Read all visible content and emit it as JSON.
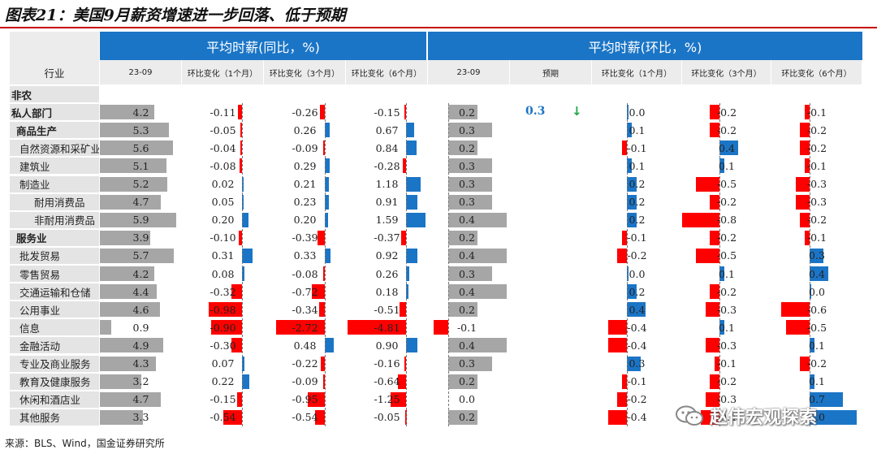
{
  "title": "图表21：美国9月薪资增速进一步回落、低于预期",
  "source": "来源：BLS、Wind，国金证券研究所",
  "watermark": "赵伟宏观探索",
  "headers": {
    "group_yoy": "平均时薪(同比，%)",
    "group_mom": "平均时薪(环比，%)",
    "industry": "行业",
    "yoy_cols": [
      "23-09",
      "环比变化（1个月）",
      "环比变化（3个月）",
      "环比变化（6个月）"
    ],
    "mom_cols": [
      "23-09",
      "预期",
      "环比变化（1个月）",
      "环比变化（3个月）",
      "环比变化（6个月）"
    ]
  },
  "forecast": {
    "value": "0.3",
    "arrow": "↓"
  },
  "colors": {
    "header_blue": "#1b75c6",
    "bar_grey": "#a6a6a6",
    "neg_red": "#ff0000",
    "pos_blue": "#1b75c6"
  },
  "chart_data": {
    "type": "table",
    "rows": [
      {
        "label": "非农",
        "level": 0,
        "bold": true,
        "section": true,
        "yoy": null,
        "yoy_d1": null,
        "yoy_d3": null,
        "yoy_d6": null,
        "mom": null,
        "mom_d1": null,
        "mom_d3": null,
        "mom_d6": null
      },
      {
        "label": "私人部门",
        "level": 0,
        "bold": true,
        "yoy": "4.2",
        "yoy_d1": "-0.11",
        "yoy_d3": "-0.26",
        "yoy_d6": "-0.15",
        "mom": "0.2",
        "mom_d1": "0.0",
        "mom_d3": "-0.2",
        "mom_d6": "-0.1"
      },
      {
        "label": "商品生产",
        "level": 1,
        "bold": true,
        "yoy": "5.3",
        "yoy_d1": "-0.05",
        "yoy_d3": "0.26",
        "yoy_d6": "0.67",
        "mom": "0.3",
        "mom_d1": "0.1",
        "mom_d3": "-0.2",
        "mom_d6": "-0.2"
      },
      {
        "label": "自然资源和采矿业",
        "level": 2,
        "bold": false,
        "yoy": "5.6",
        "yoy_d1": "-0.04",
        "yoy_d3": "-0.09",
        "yoy_d6": "0.84",
        "mom": "0.2",
        "mom_d1": "-0.1",
        "mom_d3": "0.4",
        "mom_d6": "-0.2"
      },
      {
        "label": "建筑业",
        "level": 2,
        "bold": false,
        "yoy": "5.1",
        "yoy_d1": "-0.08",
        "yoy_d3": "0.29",
        "yoy_d6": "-0.28",
        "mom": "0.3",
        "mom_d1": "0.1",
        "mom_d3": "0.1",
        "mom_d6": "-0.1"
      },
      {
        "label": "制造业",
        "level": 2,
        "bold": false,
        "yoy": "5.2",
        "yoy_d1": "0.02",
        "yoy_d3": "0.21",
        "yoy_d6": "1.18",
        "mom": "0.3",
        "mom_d1": "0.2",
        "mom_d3": "-0.5",
        "mom_d6": "-0.3"
      },
      {
        "label": "耐用消费品",
        "level": 3,
        "bold": false,
        "yoy": "4.7",
        "yoy_d1": "0.05",
        "yoy_d3": "0.23",
        "yoy_d6": "0.91",
        "mom": "0.3",
        "mom_d1": "0.2",
        "mom_d3": "-0.2",
        "mom_d6": "-0.3"
      },
      {
        "label": "非耐用消费品",
        "level": 3,
        "bold": false,
        "yoy": "5.9",
        "yoy_d1": "0.20",
        "yoy_d3": "0.20",
        "yoy_d6": "1.59",
        "mom": "0.4",
        "mom_d1": "0.2",
        "mom_d3": "-0.8",
        "mom_d6": "-0.2"
      },
      {
        "label": "服务业",
        "level": 1,
        "bold": true,
        "yoy": "3.9",
        "yoy_d1": "-0.10",
        "yoy_d3": "-0.39",
        "yoy_d6": "-0.37",
        "mom": "0.2",
        "mom_d1": "-0.1",
        "mom_d3": "-0.2",
        "mom_d6": "-0.1"
      },
      {
        "label": "批发贸易",
        "level": 2,
        "bold": false,
        "yoy": "5.7",
        "yoy_d1": "0.31",
        "yoy_d3": "0.33",
        "yoy_d6": "0.92",
        "mom": "0.4",
        "mom_d1": "-0.2",
        "mom_d3": "-0.5",
        "mom_d6": "0.3"
      },
      {
        "label": "零售贸易",
        "level": 2,
        "bold": false,
        "yoy": "4.2",
        "yoy_d1": "0.08",
        "yoy_d3": "-0.08",
        "yoy_d6": "0.26",
        "mom": "0.3",
        "mom_d1": "0.0",
        "mom_d3": "0.1",
        "mom_d6": "0.4"
      },
      {
        "label": "交通运输和仓储",
        "level": 2,
        "bold": false,
        "yoy": "4.4",
        "yoy_d1": "-0.32",
        "yoy_d3": "-0.72",
        "yoy_d6": "0.18",
        "mom": "0.4",
        "mom_d1": "0.2",
        "mom_d3": "-0.2",
        "mom_d6": "0.0"
      },
      {
        "label": "公用事业",
        "level": 2,
        "bold": false,
        "yoy": "4.6",
        "yoy_d1": "-0.98",
        "yoy_d3": "-0.34",
        "yoy_d6": "-0.51",
        "mom": "0.2",
        "mom_d1": "0.4",
        "mom_d3": "-0.3",
        "mom_d6": "-0.6"
      },
      {
        "label": "信息",
        "level": 2,
        "bold": false,
        "yoy": "0.9",
        "yoy_d1": "-0.90",
        "yoy_d3": "-2.72",
        "yoy_d6": "-4.81",
        "mom": "-0.1",
        "mom_d1": "-0.4",
        "mom_d3": "0.1",
        "mom_d6": "-0.5"
      },
      {
        "label": "金融活动",
        "level": 2,
        "bold": false,
        "yoy": "4.9",
        "yoy_d1": "-0.30",
        "yoy_d3": "0.48",
        "yoy_d6": "0.90",
        "mom": "0.4",
        "mom_d1": "-0.4",
        "mom_d3": "-0.3",
        "mom_d6": "0.1"
      },
      {
        "label": "专业及商业服务",
        "level": 2,
        "bold": false,
        "yoy": "4.3",
        "yoy_d1": "0.07",
        "yoy_d3": "-0.22",
        "yoy_d6": "-0.16",
        "mom": "0.3",
        "mom_d1": "0.3",
        "mom_d3": "-0.1",
        "mom_d6": "-0.2"
      },
      {
        "label": "教育及健康服务",
        "level": 2,
        "bold": false,
        "yoy": "3.2",
        "yoy_d1": "0.22",
        "yoy_d3": "-0.09",
        "yoy_d6": "-0.64",
        "mom": "0.2",
        "mom_d1": "-0.1",
        "mom_d3": "-0.2",
        "mom_d6": "0.1"
      },
      {
        "label": "休闲和酒店业",
        "level": 2,
        "bold": false,
        "yoy": "4.7",
        "yoy_d1": "-0.15",
        "yoy_d3": "-0.95",
        "yoy_d6": "-1.25",
        "mom": "0.0",
        "mom_d1": "-0.2",
        "mom_d3": "-0.3",
        "mom_d6": "0.7"
      },
      {
        "label": "其他服务",
        "level": 2,
        "bold": false,
        "yoy": "3.3",
        "yoy_d1": "-0.54",
        "yoy_d3": "-0.54",
        "yoy_d6": "-0.05",
        "mom": "0.2",
        "mom_d1": "-0.4",
        "mom_d3": "-0.4",
        "mom_d6": "1.0"
      }
    ]
  }
}
